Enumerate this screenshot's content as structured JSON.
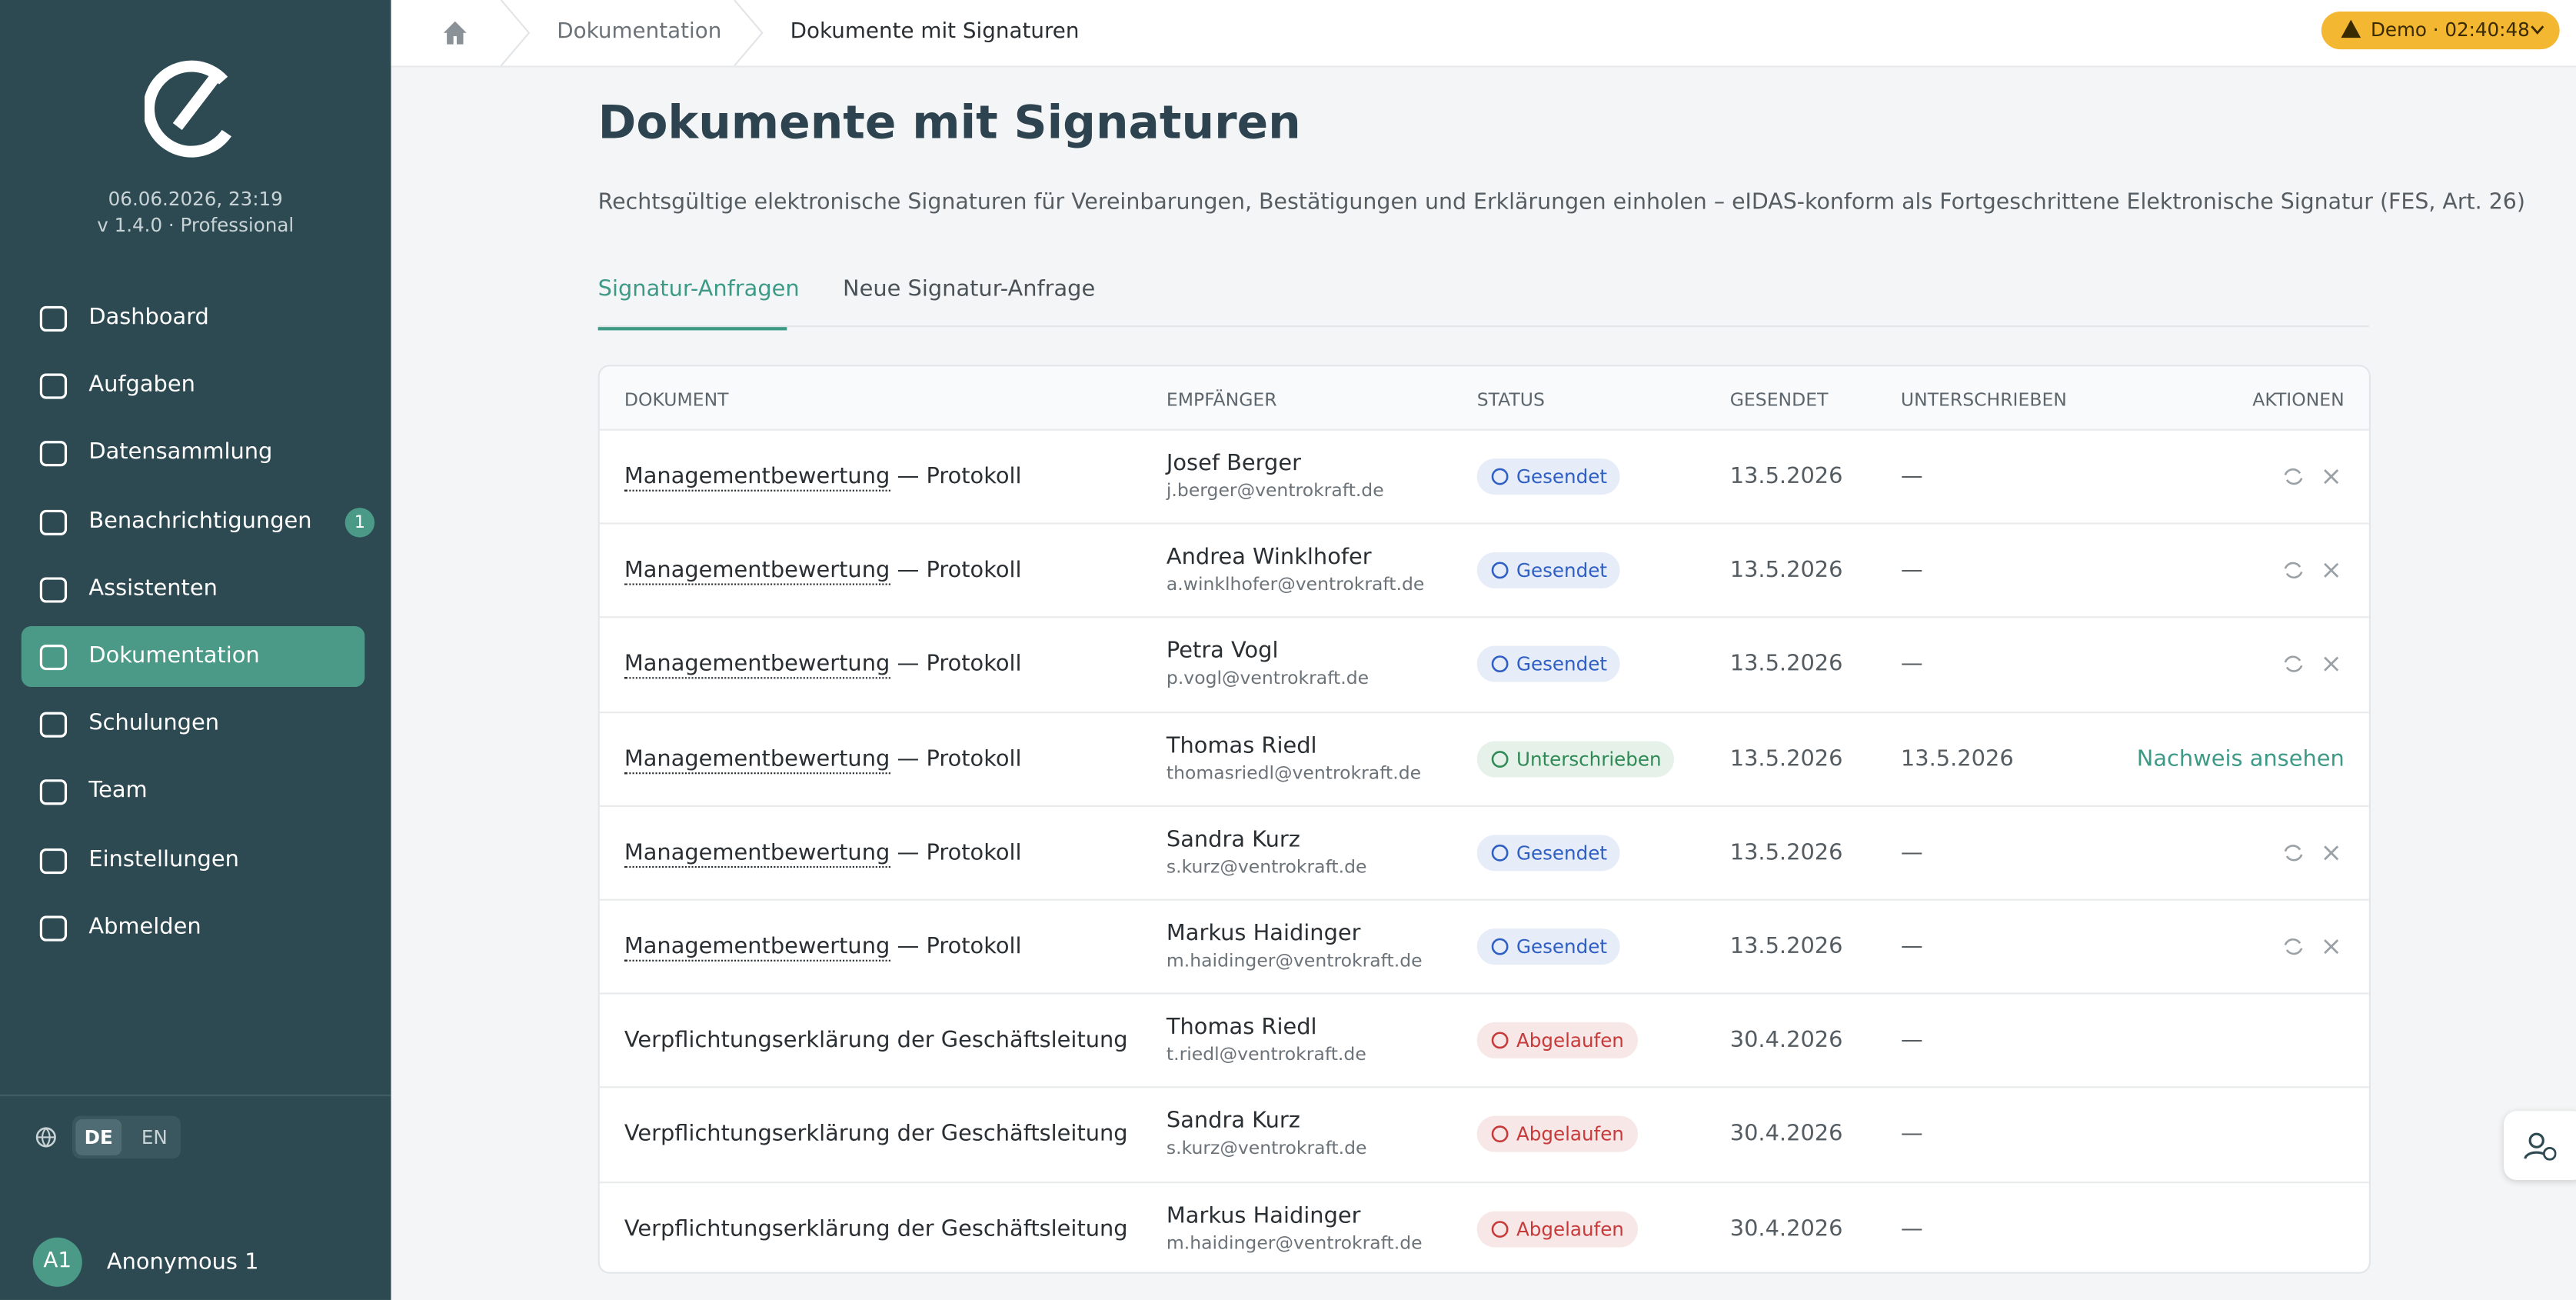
{
  "sidebar": {
    "datetime": "06.06.2026, 23:19",
    "version": "v 1.4.0 · Professional",
    "nav": [
      {
        "label": "Dashboard"
      },
      {
        "label": "Aufgaben"
      },
      {
        "label": "Datensammlung"
      },
      {
        "label": "Benachrichtigungen",
        "badge": "1"
      },
      {
        "label": "Assistenten"
      },
      {
        "label": "Dokumentation",
        "active": true
      },
      {
        "label": "Schulungen"
      },
      {
        "label": "Team"
      },
      {
        "label": "Einstellungen"
      },
      {
        "label": "Abmelden"
      }
    ],
    "languages": [
      "DE",
      "EN"
    ],
    "user": {
      "initials": "A1",
      "name": "Anonymous 1"
    }
  },
  "breadcrumb": [
    "Dokumentation",
    "Dokumente mit Signaturen"
  ],
  "demo": "Demo · 02:40:48",
  "page": {
    "title": "Dokumente mit Signaturen",
    "description": "Rechtsgültige elektronische Signaturen für Vereinbarungen, Bestätigungen und Erklärungen einholen – eIDAS-konform als Fortgeschrittene Elektronische Signatur (FES, Art. 26)"
  },
  "tabs": [
    "Signatur-Anfragen",
    "Neue Signatur-Anfrage"
  ],
  "table": {
    "headers": [
      "DOKUMENT",
      "EMPFÄNGER",
      "STATUS",
      "GESENDET",
      "UNTERSCHRIEBEN",
      "AKTIONEN"
    ],
    "rows": [
      {
        "document": "Managementbewertung",
        "document_suffix": "— Protokoll",
        "name": "Josef Berger",
        "email": "j.berger@ventrokraft.de",
        "status": "Gesendet",
        "status_color": "#2f5fc4",
        "sent": "13.5.2026",
        "signed": "—"
      },
      {
        "document": "Managementbewertung",
        "document_suffix": "— Protokoll",
        "name": "Andrea Winklhofer",
        "email": "a.winklhofer@ventrokraft.de",
        "status": "Gesendet",
        "status_color": "#2f5fc4",
        "sent": "13.5.2026",
        "signed": "—"
      },
      {
        "document": "Managementbewertung",
        "document_suffix": "— Protokoll",
        "name": "Petra Vogl",
        "email": "p.vogl@ventrokraft.de",
        "status": "Gesendet",
        "status_color": "#2f5fc4",
        "sent": "13.5.2026",
        "signed": "—"
      },
      {
        "document": "Managementbewertung",
        "document_suffix": "— Protokoll",
        "name": "Thomas Riedl",
        "email": "thomasriedl@ventrokraft.de",
        "status": "Unterschrieben",
        "status_color": "#2f8a55",
        "sent": "13.5.2026",
        "signed": "13.5.2026",
        "action": "Nachweis ansehen"
      },
      {
        "document": "Managementbewertung",
        "document_suffix": "— Protokoll",
        "name": "Sandra Kurz",
        "email": "s.kurz@ventrokraft.de",
        "status": "Gesendet",
        "status_color": "#2f5fc4",
        "sent": "13.5.2026",
        "signed": "—"
      },
      {
        "document": "Managementbewertung",
        "document_suffix": "— Protokoll",
        "name": "Markus Haidinger",
        "email": "m.haidinger@ventrokraft.de",
        "status": "Gesendet",
        "status_color": "#2f5fc4",
        "sent": "13.5.2026",
        "signed": "—"
      },
      {
        "document": "Verpflichtungserklärung der Geschäftsleitung",
        "name": "Thomas Riedl",
        "email": "t.riedl@ventrokraft.de",
        "status": "Abgelaufen",
        "status_color": "#c73a3a",
        "sent": "30.4.2026",
        "signed": "—"
      },
      {
        "document": "Verpflichtungserklärung der Geschäftsleitung",
        "name": "Sandra Kurz",
        "email": "s.kurz@ventrokraft.de",
        "status": "Abgelaufen",
        "status_color": "#c73a3a",
        "sent": "30.4.2026",
        "signed": "—"
      },
      {
        "document": "Verpflichtungserklärung der Geschäftsleitung",
        "name": "Markus Haidinger",
        "email": "m.haidinger@ventrokraft.de",
        "status": "Abgelaufen",
        "status_color": "#c73a3a",
        "sent": "30.4.2026",
        "signed": "—"
      }
    ]
  }
}
